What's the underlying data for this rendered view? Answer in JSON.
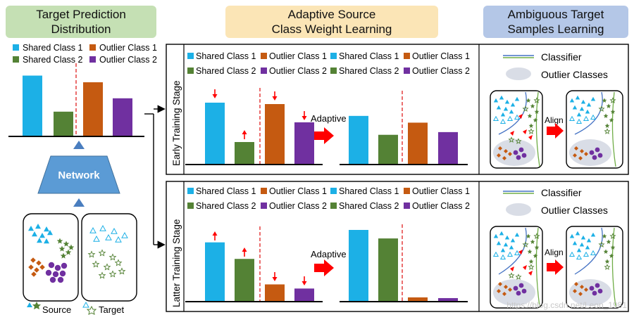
{
  "headers": {
    "left": [
      "Target Prediction",
      "Distribution"
    ],
    "middle": [
      "Adaptive Source",
      "Class Weight Learning"
    ],
    "right": [
      "Ambiguous Target",
      "Samples Learning"
    ]
  },
  "legend": {
    "shared1": "Shared Class 1",
    "shared2": "Shared Class 2",
    "outlier1": "Outlier Class 1",
    "outlier2": "Outlier Class 2"
  },
  "network_label": "Network",
  "source_label": "Source",
  "target_label": "Target",
  "stages": {
    "early": "Early Training Stage",
    "latter": "Latter Training Stage"
  },
  "adaptive_label": "Adaptive",
  "align_label": "Align",
  "classifier_label": "Classifier",
  "outlier_classes_label": "Outlier Classes",
  "watermark": "https://blog.csdn.net/Leon_1981",
  "colors": {
    "shared1": "#1cb0e6",
    "shared2": "#548235",
    "outlier1": "#c55a11",
    "outlier2": "#7030a0",
    "arrow_red": "#ff0000",
    "arrow_blue": "#4a7ebf",
    "network_fill": "#5b9bd5"
  },
  "chart_data": [
    {
      "type": "bar",
      "name": "target-prediction",
      "categories": [
        "Shared Class 1",
        "Shared Class 2",
        "Outlier Class 1",
        "Outlier Class 2"
      ],
      "values": [
        0.9,
        0.36,
        0.8,
        0.56
      ]
    },
    {
      "type": "bar",
      "name": "early-before",
      "categories": [
        "Shared Class 1",
        "Shared Class 2",
        "Outlier Class 1",
        "Outlier Class 2"
      ],
      "values": [
        0.87,
        0.31,
        0.85,
        0.59
      ]
    },
    {
      "type": "bar",
      "name": "early-after",
      "categories": [
        "Shared Class 1",
        "Shared Class 2",
        "Outlier Class 1",
        "Outlier Class 2"
      ],
      "values": [
        0.71,
        0.43,
        0.61,
        0.47
      ]
    },
    {
      "type": "bar",
      "name": "latter-before",
      "categories": [
        "Shared Class 1",
        "Shared Class 2",
        "Outlier Class 1",
        "Outlier Class 2"
      ],
      "values": [
        0.85,
        0.61,
        0.24,
        0.18
      ]
    },
    {
      "type": "bar",
      "name": "latter-after",
      "categories": [
        "Shared Class 1",
        "Shared Class 2",
        "Outlier Class 1",
        "Outlier Class 2"
      ],
      "values": [
        1.0,
        0.88,
        0.05,
        0.04
      ]
    }
  ]
}
